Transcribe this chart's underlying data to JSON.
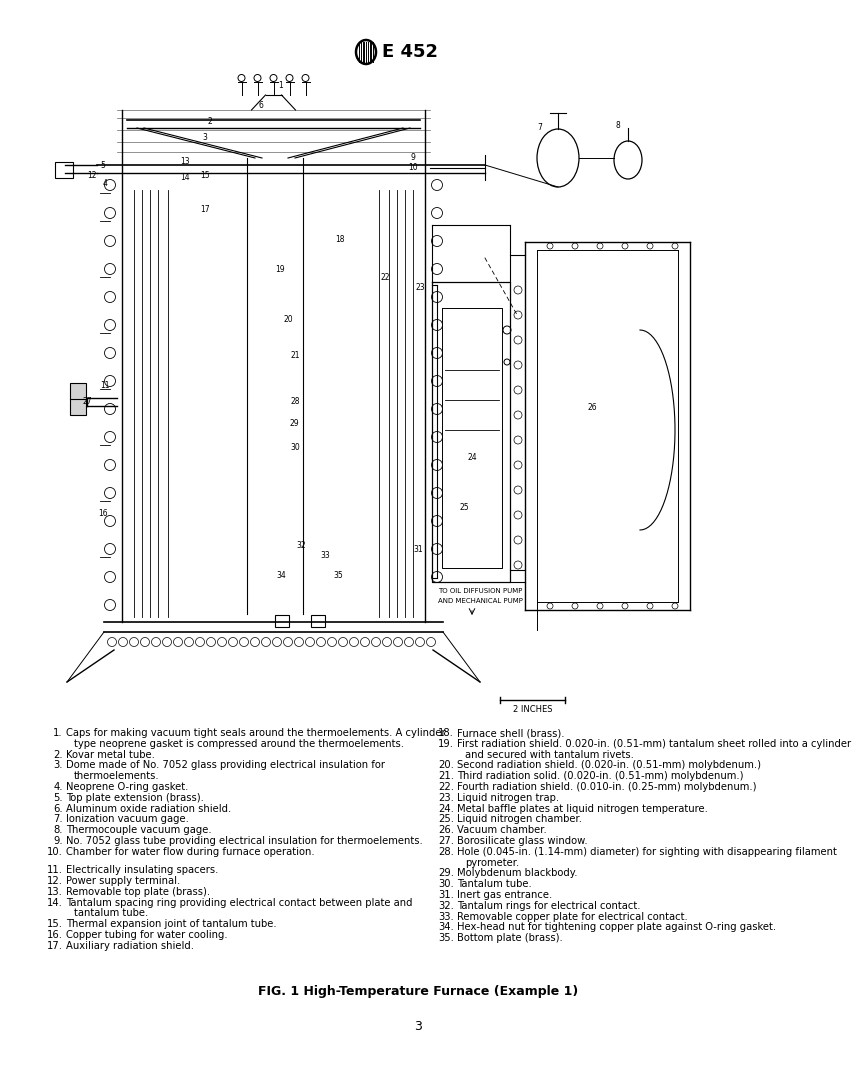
{
  "title": "E 452",
  "bg_color": "#ffffff",
  "fig_caption": "FIG. 1 High-Temperature Furnace (Example 1)",
  "page_number": "3",
  "legend_items_left": [
    {
      "num": "1.",
      "text": "Caps for making vacuum tight seals around the thermoelements. A cylinder\n    type neoprene gasket is compressed around the thermoelements."
    },
    {
      "num": "2.",
      "text": "Kovar metal tube."
    },
    {
      "num": "3.",
      "text": "Dome made of No. 7052 glass providing electrical insulation for\n    thermoelements."
    },
    {
      "num": "4.",
      "text": "Neoprene O-ring gasket."
    },
    {
      "num": "5.",
      "text": "Top plate extension (brass)."
    },
    {
      "num": "6.",
      "text": "Aluminum oxide radiation shield."
    },
    {
      "num": "7.",
      "text": "Ionization vacuum gage."
    },
    {
      "num": "8.",
      "text": "Thermocouple vacuum gage."
    },
    {
      "num": "9.",
      "text": "No. 7052 glass tube providing electrical insulation for thermoelements."
    },
    {
      "num": "10.",
      "text": "Chamber for water flow during furnace operation."
    },
    {
      "num": "",
      "text": ""
    },
    {
      "num": "11.",
      "text": "Electrically insulating spacers."
    },
    {
      "num": "12.",
      "text": "Power supply terminal."
    },
    {
      "num": "13.",
      "text": "Removable top plate (brass)."
    },
    {
      "num": "14.",
      "text": "Tantalum spacing ring providing electrical contact between plate and\n      tantalum tube."
    },
    {
      "num": "15.",
      "text": "Thermal expansion joint of tantalum tube."
    },
    {
      "num": "16.",
      "text": "Copper tubing for water cooling."
    },
    {
      "num": "17.",
      "text": "Auxiliary radiation shield."
    }
  ],
  "legend_items_right": [
    {
      "num": "18.",
      "text": "Furnace shell (brass)."
    },
    {
      "num": "19.",
      "text": "First radiation shield. 0.020-in. (0.51-mm) tantalum sheet rolled into a cylinder\n      and secured with tantalum rivets."
    },
    {
      "num": "20.",
      "text": "Second radiation shield. (0.020-in. (0.51-mm) molybdenum.)"
    },
    {
      "num": "21.",
      "text": "Third radiation solid. (0.020-in. (0.51-mm) molybdenum.)"
    },
    {
      "num": "22.",
      "text": "Fourth radiation shield. (0.010-in. (0.25-mm) molybdenum.)"
    },
    {
      "num": "23.",
      "text": "Liquid nitrogen trap."
    },
    {
      "num": "24.",
      "text": "Metal baffle plates at liquid nitrogen temperature."
    },
    {
      "num": "25.",
      "text": "Liquid nitrogen chamber."
    },
    {
      "num": "26.",
      "text": "Vacuum chamber."
    },
    {
      "num": "27.",
      "text": "Borosilicate glass window."
    },
    {
      "num": "28.",
      "text": "Hole (0.045-in. (1.14-mm) diameter) for sighting with disappearing filament\n      pyrometer."
    },
    {
      "num": "29.",
      "text": "Molybdenum blackbody."
    },
    {
      "num": "30.",
      "text": "Tantalum tube."
    },
    {
      "num": "31.",
      "text": "Inert gas entrance."
    },
    {
      "num": "32.",
      "text": "Tantalum rings for electrical contact."
    },
    {
      "num": "33.",
      "text": "Removable copper plate for electrical contact."
    },
    {
      "num": "34.",
      "text": "Hex-head nut for tightening copper plate against O-ring gasket."
    },
    {
      "num": "35.",
      "text": "Bottom plate (brass)."
    }
  ]
}
